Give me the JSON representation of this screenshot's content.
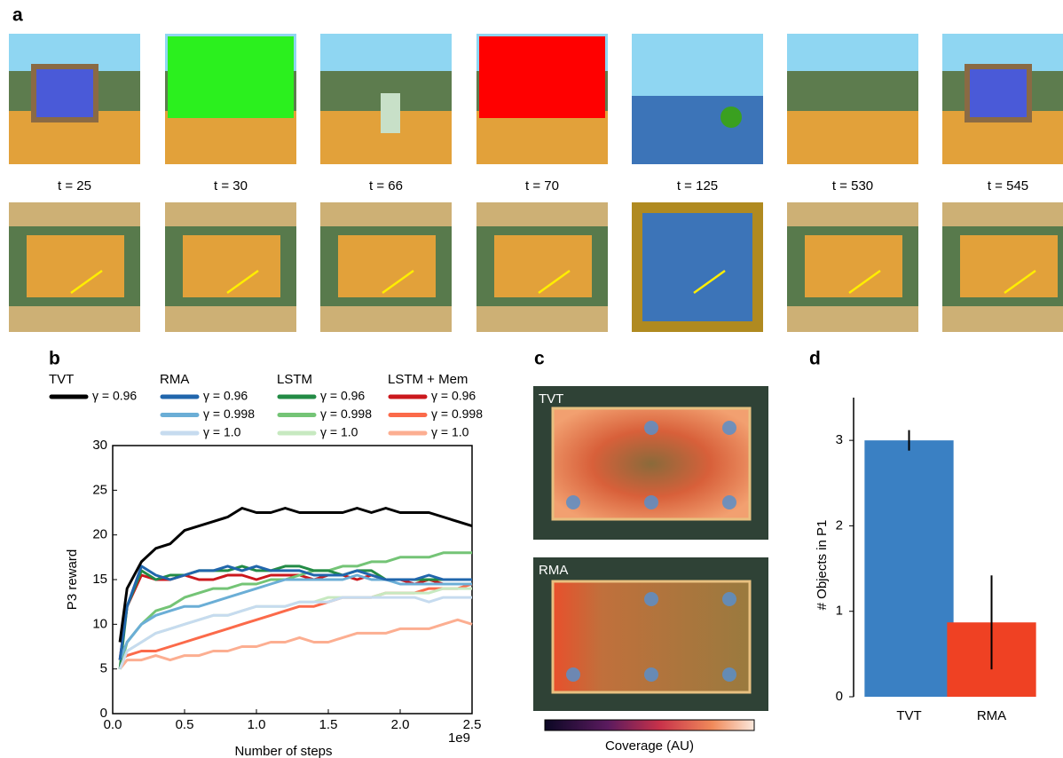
{
  "panel_labels": [
    "a",
    "b",
    "c",
    "d"
  ],
  "frames": {
    "times": [
      "t = 25",
      "t = 30",
      "t = 66",
      "t = 70",
      "t = 125",
      "t = 530",
      "t = 545"
    ]
  },
  "coverage": {
    "maps": [
      "TVT",
      "RMA"
    ],
    "colorbar_label": "Coverage (AU)"
  },
  "chart_data": [
    {
      "type": "line",
      "xlabel": "Number of steps",
      "ylabel": "P3 reward",
      "x_offset_label": "1e9",
      "x": [
        50000000,
        100000000,
        200000000,
        300000000,
        400000000,
        500000000,
        600000000,
        700000000,
        800000000,
        900000000,
        1000000000,
        1100000000,
        1200000000,
        1300000000,
        1400000000,
        1500000000,
        1600000000,
        1700000000,
        1800000000,
        1900000000,
        2000000000,
        2100000000,
        2200000000,
        2300000000,
        2400000000,
        2500000000
      ],
      "xlim": [
        0,
        2500000000
      ],
      "xticks": [
        {
          "value": 0,
          "label": "0.0"
        },
        {
          "value": 500000000,
          "label": "0.5"
        },
        {
          "value": 1000000000,
          "label": "1.0"
        },
        {
          "value": 1500000000,
          "label": "1.5"
        },
        {
          "value": 2000000000,
          "label": "2.0"
        },
        {
          "value": 2500000000,
          "label": "2.5"
        }
      ],
      "ylim": [
        0,
        30
      ],
      "yticks": [
        0,
        5,
        10,
        15,
        20,
        25,
        30
      ],
      "groups": [
        {
          "name": "TVT",
          "series": [
            {
              "name": "γ = 0.96",
              "color": "#000000",
              "values": [
                8,
                14,
                17,
                18.5,
                19,
                20.5,
                21,
                21.5,
                22,
                23,
                22.5,
                22.5,
                23,
                22.5,
                22.5,
                22.5,
                22.5,
                23,
                22.5,
                23,
                22.5,
                22.5,
                22.5,
                22,
                21.5,
                21
              ]
            }
          ]
        },
        {
          "name": "RMA",
          "series": [
            {
              "name": "γ = 0.96",
              "color": "#2166ac",
              "values": [
                6,
                12,
                16.5,
                15.5,
                15,
                15.5,
                16,
                16,
                16.5,
                16,
                16.5,
                16,
                16,
                16,
                15.5,
                15.5,
                15.5,
                16,
                15.5,
                15,
                15,
                15,
                15.5,
                15,
                15,
                15
              ]
            },
            {
              "name": "γ = 0.998",
              "color": "#6baed6",
              "values": [
                6,
                8,
                10,
                11,
                11.5,
                12,
                12,
                12.5,
                13,
                13.5,
                14,
                14.5,
                15,
                15,
                15,
                15,
                15,
                15.5,
                15,
                15,
                14.5,
                14.5,
                14.5,
                14.5,
                14.5,
                14.5
              ]
            },
            {
              "name": "γ = 1.0",
              "color": "#c6dbef",
              "values": [
                5,
                7,
                8,
                9,
                9.5,
                10,
                10.5,
                11,
                11,
                11.5,
                12,
                12,
                12,
                12.5,
                12.5,
                12.5,
                13,
                13,
                13,
                13,
                13,
                13,
                12.5,
                13,
                13,
                13
              ]
            }
          ]
        },
        {
          "name": "LSTM",
          "series": [
            {
              "name": "γ = 0.96",
              "color": "#238b45",
              "values": [
                5,
                12,
                16,
                15,
                15.5,
                15.5,
                16,
                16,
                16,
                16.5,
                16,
                16,
                16.5,
                16.5,
                16,
                16,
                15.5,
                16,
                16,
                15,
                15,
                15,
                15,
                15,
                15,
                15
              ]
            },
            {
              "name": "γ = 0.998",
              "color": "#74c476",
              "values": [
                5,
                8,
                10,
                11.5,
                12,
                13,
                13.5,
                14,
                14,
                14.5,
                14.5,
                15,
                15,
                15.5,
                16,
                16,
                16.5,
                16.5,
                17,
                17,
                17.5,
                17.5,
                17.5,
                18,
                18,
                18
              ]
            },
            {
              "name": "γ = 1.0",
              "color": "#c7e9c0",
              "values": [
                5,
                7,
                8,
                9,
                9.5,
                10,
                10.5,
                11,
                11,
                11.5,
                12,
                12,
                12,
                12.5,
                12.5,
                13,
                13,
                13,
                13,
                13.5,
                13.5,
                13.5,
                13.5,
                14,
                14,
                14
              ]
            }
          ]
        },
        {
          "name": "LSTM + Mem",
          "series": [
            {
              "name": "γ = 0.96",
              "color": "#cb181d",
              "values": [
                6,
                12,
                15.5,
                15,
                15,
                15.5,
                15,
                15,
                15.5,
                15.5,
                15,
                15.5,
                15.5,
                15.5,
                15,
                15.5,
                15.5,
                15,
                15.5,
                15,
                15,
                14.5,
                15,
                14.5,
                14.5,
                14.5
              ]
            },
            {
              "name": "γ = 0.998",
              "color": "#fb6a4a",
              "values": [
                6,
                6.5,
                7,
                7,
                7.5,
                8,
                8.5,
                9,
                9.5,
                10,
                10.5,
                11,
                11.5,
                12,
                12,
                12.5,
                13,
                13,
                13,
                13.5,
                13.5,
                13.5,
                14,
                14,
                14,
                14.5
              ]
            },
            {
              "name": "γ = 1.0",
              "color": "#fcae91",
              "values": [
                5,
                6,
                6,
                6.5,
                6,
                6.5,
                6.5,
                7,
                7,
                7.5,
                7.5,
                8,
                8,
                8.5,
                8,
                8,
                8.5,
                9,
                9,
                9,
                9.5,
                9.5,
                9.5,
                10,
                10.5,
                10
              ]
            }
          ]
        }
      ]
    },
    {
      "type": "bar",
      "ylabel": "# Objects in P1",
      "categories": [
        "TVT",
        "RMA"
      ],
      "values": [
        3,
        0.87
      ],
      "errors": [
        0.12,
        0.55
      ],
      "colors": [
        "#3a80c3",
        "#ef4123"
      ],
      "ylim": [
        0,
        3.5
      ],
      "yticks": [
        0,
        1,
        2,
        3
      ]
    }
  ]
}
